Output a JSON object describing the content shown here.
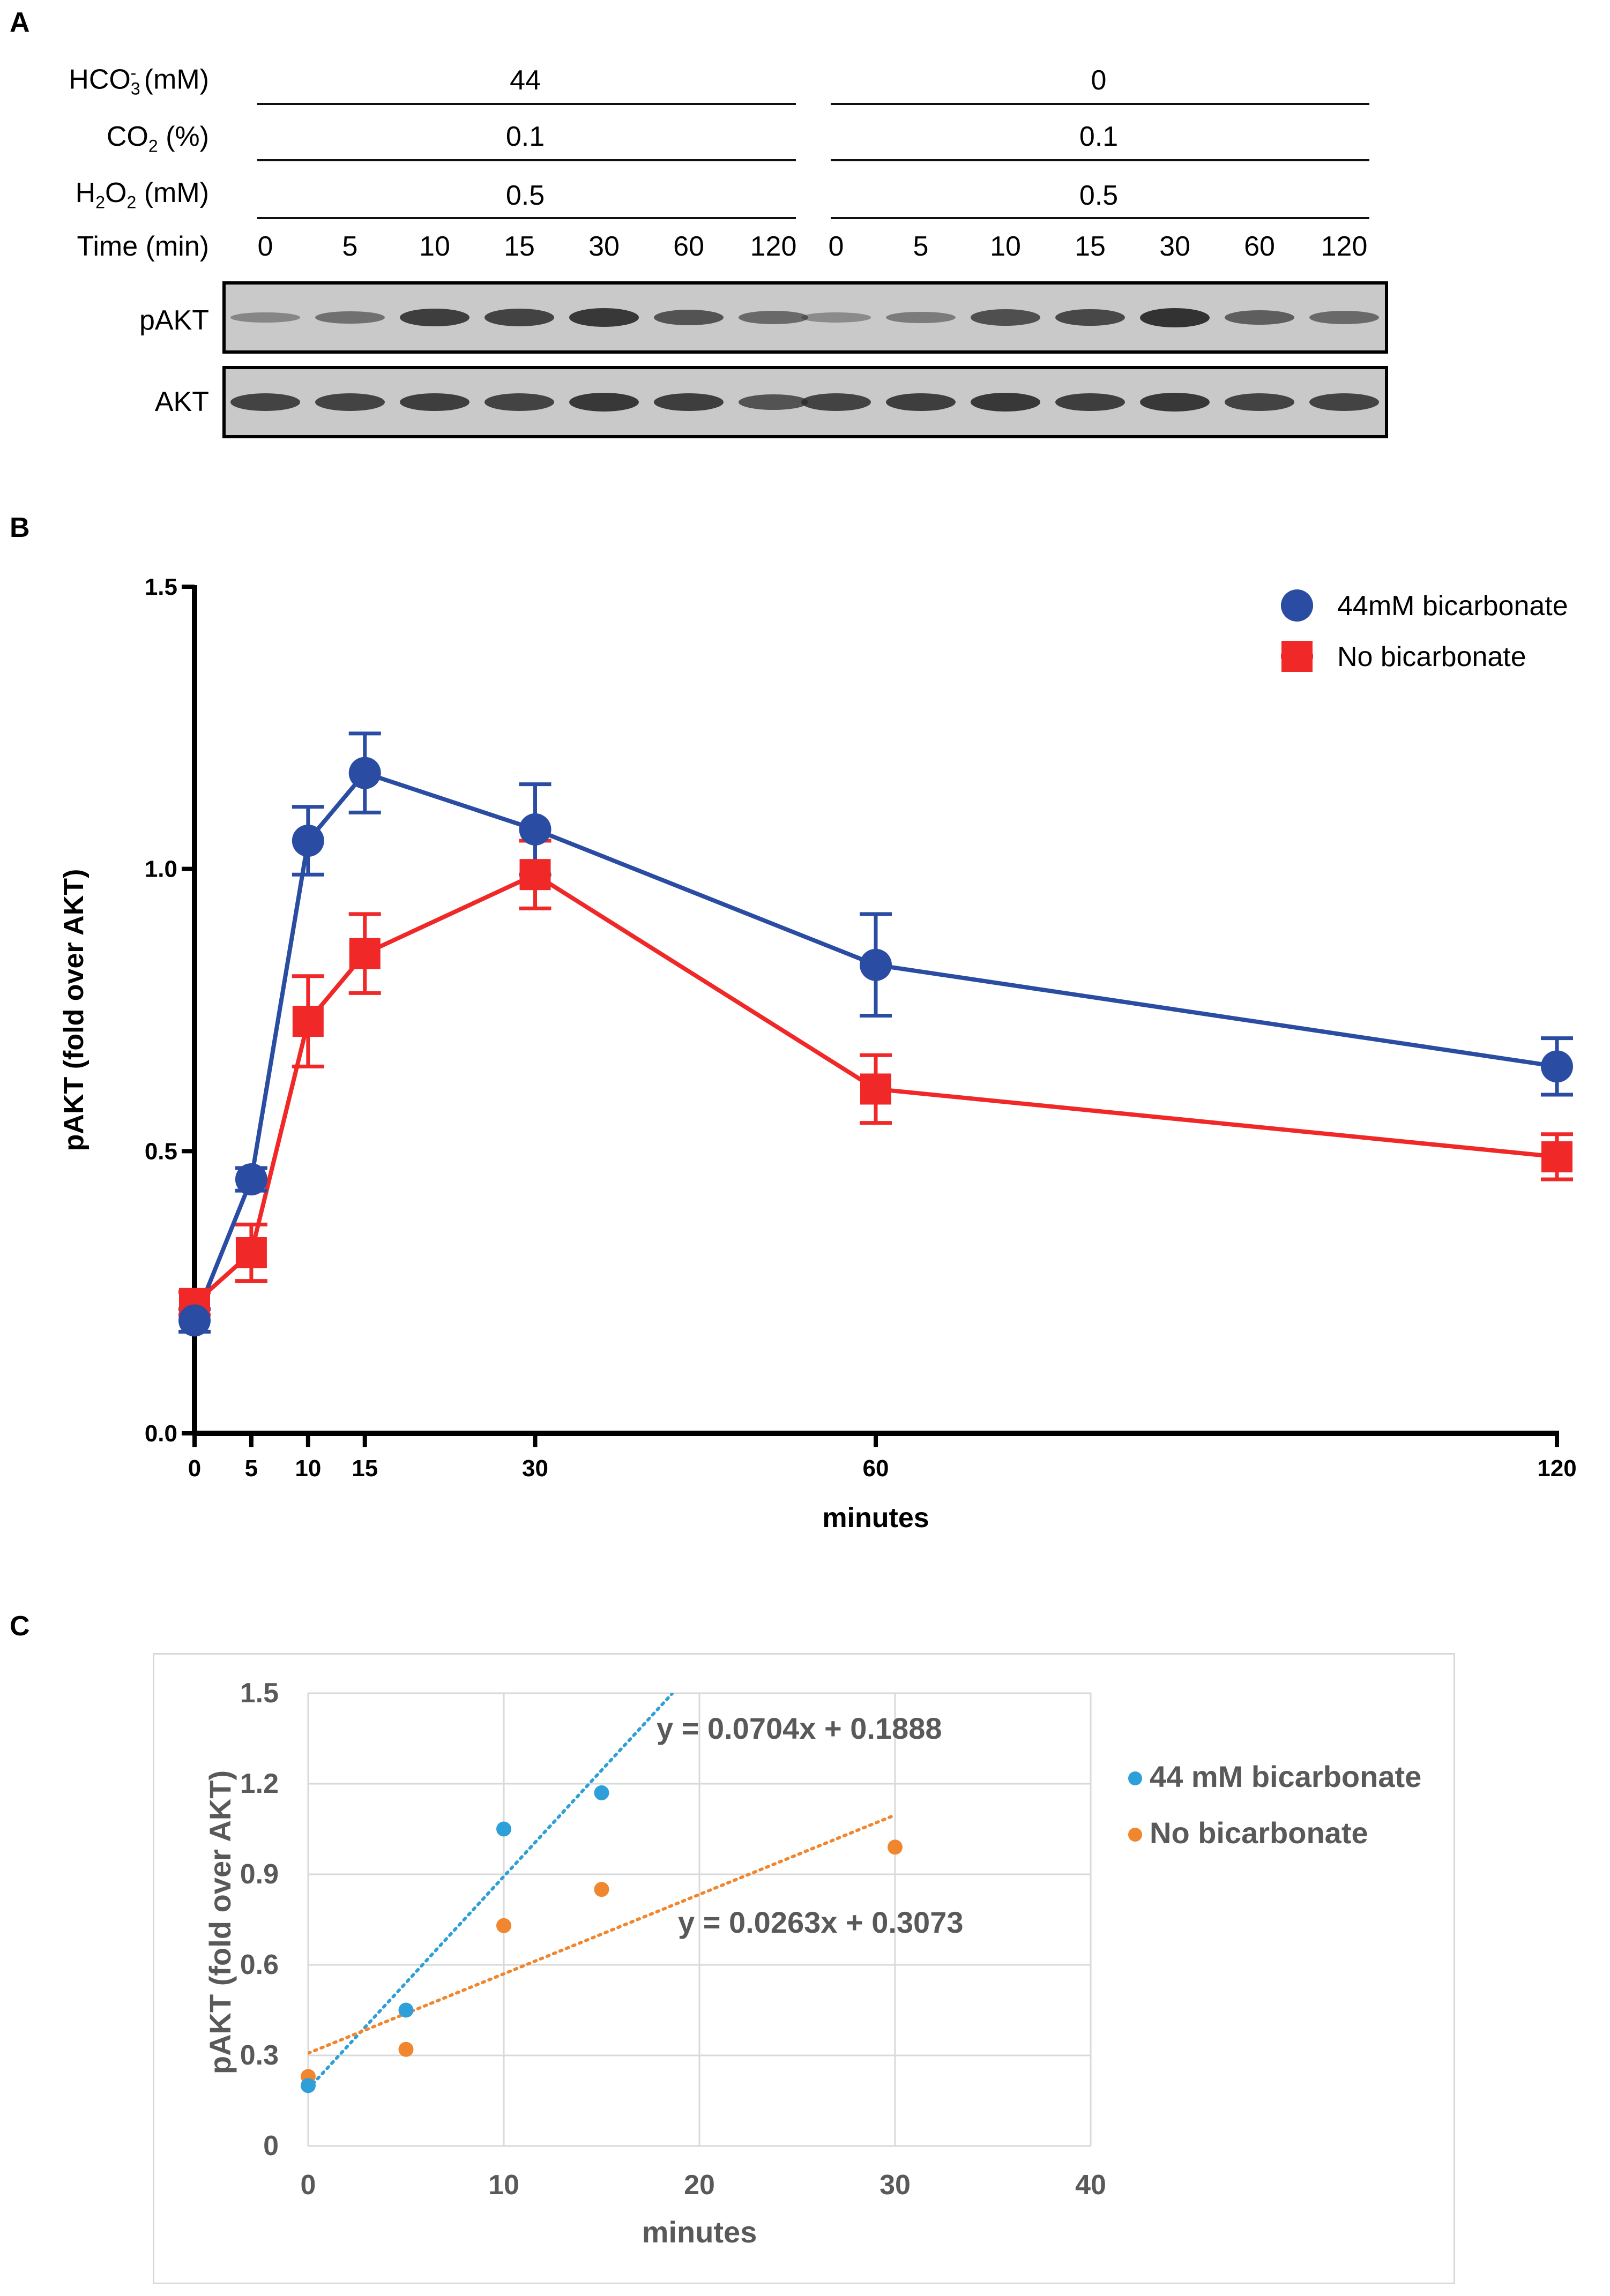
{
  "panel_a": {
    "label": "A",
    "conditions": [
      {
        "label_base": "HCO",
        "label_sub": "3",
        "label_sup": "-",
        "label_tail": " (mM)",
        "left_value": "44",
        "right_value": "0"
      },
      {
        "label_base": "CO",
        "label_sub": "2",
        "label_sup": "",
        "label_tail": " (%)",
        "left_value": "0.1",
        "right_value": "0.1"
      },
      {
        "label_base": "H",
        "label_sub": "2",
        "label_mid": "O",
        "label_sub2": "2",
        "label_tail": " (mM)",
        "left_value": "0.5",
        "right_value": "0.5"
      }
    ],
    "time_label": "Time (min)",
    "times": [
      "0",
      "5",
      "10",
      "15",
      "30",
      "60",
      "120",
      "0",
      "5",
      "10",
      "15",
      "30",
      "60",
      "120"
    ],
    "blots": [
      {
        "label": "pAKT",
        "intensities": [
          0.25,
          0.45,
          0.9,
          0.85,
          0.95,
          0.7,
          0.5,
          0.2,
          0.35,
          0.75,
          0.8,
          1.0,
          0.6,
          0.5
        ]
      },
      {
        "label": "AKT",
        "intensities": [
          0.85,
          0.85,
          0.9,
          0.85,
          0.95,
          0.9,
          0.7,
          0.85,
          0.9,
          0.95,
          0.9,
          0.95,
          0.85,
          0.85
        ]
      }
    ]
  },
  "panel_b": {
    "label": "B",
    "chart_data": {
      "type": "line",
      "x": [
        0,
        5,
        10,
        15,
        30,
        60,
        120
      ],
      "xlabel": "minutes",
      "ylabel": "pAKT (fold over AKT)",
      "xlim": [
        0,
        120
      ],
      "ylim": [
        0,
        1.5
      ],
      "yticks": [
        "0.0",
        "0.5",
        "1.0",
        "1.5"
      ],
      "xticks": [
        "0",
        "5",
        "10",
        "15",
        "30",
        "60",
        "120"
      ],
      "legend_position": "top-right",
      "series": [
        {
          "name": "44mM bicarbonate",
          "color": "#2a4da3",
          "marker": "circle",
          "values": [
            0.2,
            0.45,
            1.05,
            1.17,
            1.07,
            0.83,
            0.65
          ],
          "errors": [
            0.02,
            0.02,
            0.06,
            0.07,
            0.08,
            0.09,
            0.05
          ]
        },
        {
          "name": "No bicarbonate",
          "color": "#f02828",
          "marker": "square",
          "values": [
            0.23,
            0.32,
            0.73,
            0.85,
            0.99,
            0.61,
            0.49
          ],
          "errors": [
            0.02,
            0.05,
            0.08,
            0.07,
            0.06,
            0.06,
            0.04
          ]
        }
      ]
    }
  },
  "panel_c": {
    "label": "C",
    "chart_data": {
      "type": "scatter",
      "xlabel": "minutes",
      "ylabel": "pAKT (fold over AKT)",
      "xlim": [
        0,
        40
      ],
      "ylim": [
        0,
        1.5
      ],
      "xticks": [
        "0",
        "10",
        "20",
        "30",
        "40"
      ],
      "yticks": [
        "0",
        "0.3",
        "0.6",
        "0.9",
        "1.2",
        "1.5"
      ],
      "grid": true,
      "legend_position": "right",
      "series": [
        {
          "name": "44 mM bicarbonate",
          "color": "#2e9fd8",
          "x": [
            0,
            5,
            10,
            15
          ],
          "y": [
            0.2,
            0.45,
            1.05,
            1.17
          ],
          "trendline": {
            "slope": 0.0704,
            "intercept": 0.1888,
            "label": "y = 0.0704x + 0.1888"
          }
        },
        {
          "name": "No bicarbonate",
          "color": "#f0862e",
          "x": [
            0,
            5,
            10,
            15,
            30
          ],
          "y": [
            0.23,
            0.32,
            0.73,
            0.85,
            0.99
          ],
          "trendline": {
            "slope": 0.0263,
            "intercept": 0.3073,
            "label": "y = 0.0263x + 0.3073"
          }
        }
      ]
    }
  }
}
